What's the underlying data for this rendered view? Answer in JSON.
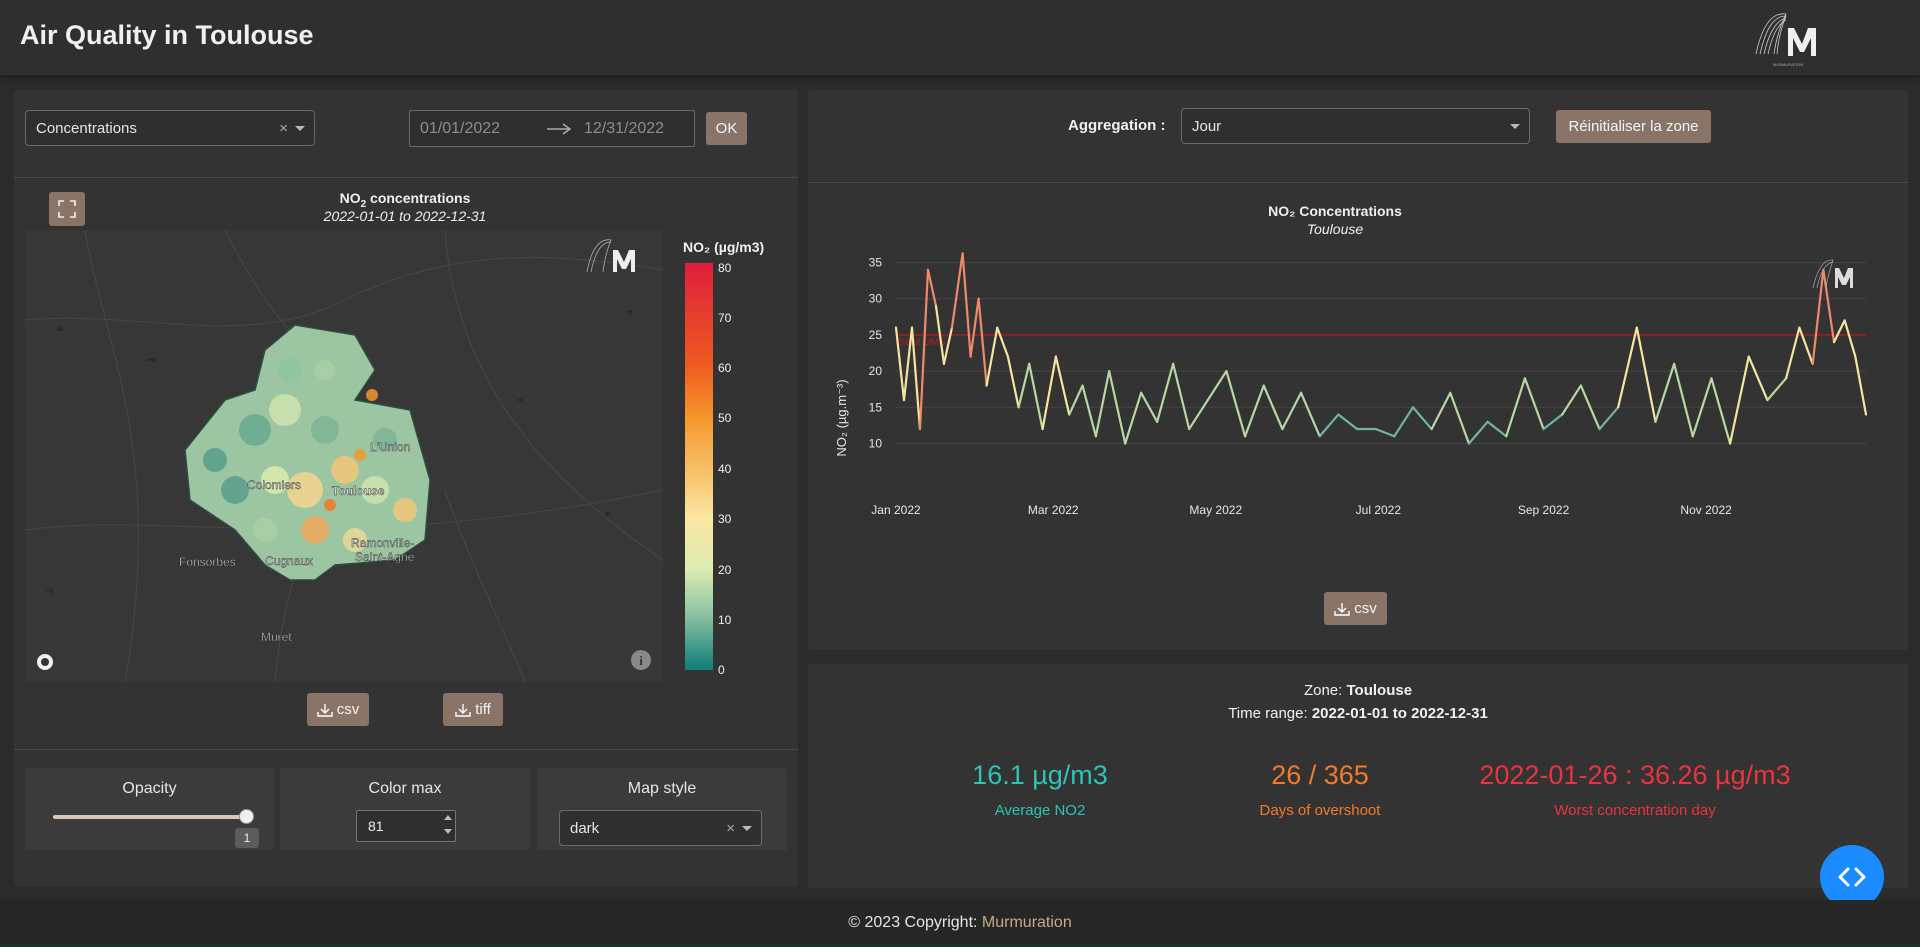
{
  "header": {
    "title": "Air Quality in Toulouse"
  },
  "filters": {
    "pollutant_select": "Concentrations",
    "date_start": "01/01/2022",
    "date_end": "12/31/2022",
    "ok_label": "OK"
  },
  "map": {
    "fullscreen_icon": "expand-icon",
    "title": "NO",
    "title_sub": "2",
    "title_rest": " concentrations",
    "subtitle": "2022-01-01 to 2022-12-31",
    "colorbar_title": "NO₂ (µg/m3)",
    "colorbar_ticks": [
      "80",
      "70",
      "60",
      "50",
      "40",
      "30",
      "20",
      "10",
      "0"
    ],
    "labels": [
      "L'Union",
      "Colomiers",
      "Toulouse",
      "Ramonville-",
      "Saint-Agne",
      "Cugnaux",
      "Fonsorbes",
      "Muret"
    ],
    "csv_label": "csv",
    "tiff_label": "tiff"
  },
  "controls": {
    "opacity_label": "Opacity",
    "opacity_value": "1",
    "colormax_label": "Color max",
    "colormax_value": "81",
    "mapstyle_label": "Map style",
    "mapstyle_value": "dark"
  },
  "aggregation": {
    "label": "Aggregation :",
    "value": "Jour",
    "reset_label": "Réinitialiser la zone"
  },
  "chart_data": {
    "type": "line",
    "title": "NO₂ Concentrations",
    "subtitle": "Toulouse",
    "ylabel": "NO₂ (µg.m⁻³)",
    "xlabel": "",
    "x_tick_labels": [
      "Jan 2022",
      "Mar 2022",
      "May 2022",
      "Jul 2022",
      "Sep 2022",
      "Nov 2022"
    ],
    "y_ticks": [
      10,
      15,
      20,
      25,
      30,
      35
    ],
    "ylim": [
      8,
      37
    ],
    "xlim": [
      "2022-01-01",
      "2022-12-31"
    ],
    "threshold": 25,
    "threshold_label": "Seuil OMS",
    "x": [
      "2022-01-01",
      "2022-01-04",
      "2022-01-07",
      "2022-01-10",
      "2022-01-13",
      "2022-01-16",
      "2022-01-19",
      "2022-01-22",
      "2022-01-26",
      "2022-01-29",
      "2022-02-01",
      "2022-02-04",
      "2022-02-08",
      "2022-02-12",
      "2022-02-16",
      "2022-02-20",
      "2022-02-25",
      "2022-03-02",
      "2022-03-07",
      "2022-03-12",
      "2022-03-17",
      "2022-03-22",
      "2022-03-28",
      "2022-04-03",
      "2022-04-09",
      "2022-04-15",
      "2022-04-21",
      "2022-04-28",
      "2022-05-05",
      "2022-05-12",
      "2022-05-19",
      "2022-05-26",
      "2022-06-02",
      "2022-06-09",
      "2022-06-16",
      "2022-06-23",
      "2022-06-30",
      "2022-07-07",
      "2022-07-14",
      "2022-07-21",
      "2022-07-28",
      "2022-08-04",
      "2022-08-11",
      "2022-08-18",
      "2022-08-25",
      "2022-09-01",
      "2022-09-08",
      "2022-09-15",
      "2022-09-22",
      "2022-09-29",
      "2022-10-06",
      "2022-10-13",
      "2022-10-20",
      "2022-10-27",
      "2022-11-03",
      "2022-11-10",
      "2022-11-17",
      "2022-11-24",
      "2022-12-01",
      "2022-12-06",
      "2022-12-11",
      "2022-12-15",
      "2022-12-19",
      "2022-12-23",
      "2022-12-27",
      "2022-12-31"
    ],
    "values": [
      26,
      16,
      26,
      12,
      34,
      29,
      21,
      26,
      36.26,
      22,
      30,
      18,
      26,
      22,
      15,
      21,
      12,
      22,
      14,
      18,
      11,
      20,
      10,
      17,
      13,
      21,
      12,
      16,
      20,
      11,
      18,
      12,
      17,
      11,
      14,
      12,
      12,
      11,
      15,
      12,
      17,
      10,
      13,
      11,
      19,
      12,
      14,
      18,
      12,
      15,
      26,
      13,
      21,
      11,
      19,
      10,
      22,
      16,
      19,
      26,
      21,
      34,
      24,
      27,
      22,
      14
    ]
  },
  "chart": {
    "csv_label": "csv"
  },
  "stats": {
    "zone_label": "Zone: ",
    "zone_value": "Toulouse",
    "time_label": "Time range: ",
    "time_value": "2022-01-01 to 2022-12-31",
    "avg_value": "16.1 µg/m3",
    "avg_label": "Average NO2",
    "overshoot_value": "26 / 365",
    "overshoot_label": "Days of overshoot",
    "worst_value": "2022-01-26 : 36.26 µg/m3",
    "worst_label": "Worst concentration day",
    "colors": {
      "avg": "#2cc4b5",
      "overshoot": "#f47a2a",
      "worst": "#e8343e"
    }
  },
  "footer": {
    "copyright": "© 2023 Copyright: ",
    "brand": "Murmuration"
  }
}
